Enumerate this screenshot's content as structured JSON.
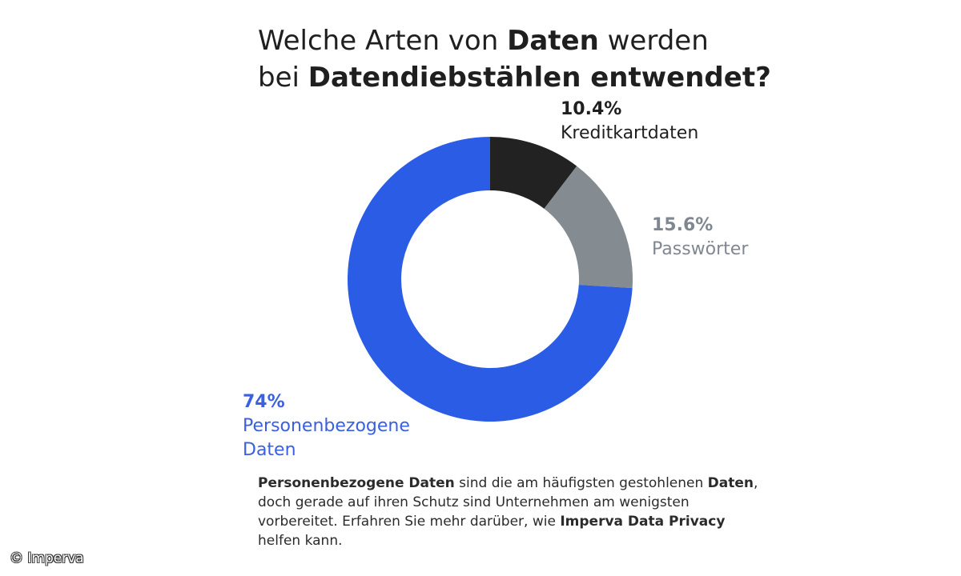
{
  "title": {
    "line1_regular": "Welche Arten von ",
    "line1_bold": "Daten",
    "line1_end": " werden",
    "line2_regular": "bei ",
    "line2_bold": "Datendiebstählen entwendet?"
  },
  "chart_data": {
    "type": "pie",
    "donut": true,
    "title": "Welche Arten von Daten werden bei Datendiebstählen entwendet?",
    "slices": [
      {
        "name": "Kreditkartdaten",
        "value": 10.4,
        "label": "10.4%",
        "color": "#222222"
      },
      {
        "name": "Passwörter",
        "value": 15.6,
        "label": "15.6%",
        "color": "#848c92"
      },
      {
        "name": "Personenbezogene Daten",
        "value": 74,
        "label": "74%",
        "color": "#2b5ce6"
      }
    ]
  },
  "labels": {
    "credit_pct": "10.4%",
    "credit_name": "Kreditkartdaten",
    "pass_pct": "15.6%",
    "pass_name": "Passwörter",
    "pers_pct": "74%",
    "pers_name_line1": "Personenbezogene",
    "pers_name_line2": "Daten"
  },
  "description": {
    "b1": "Personenbezogene Daten",
    "t1": " sind die am häufigsten gestohlenen ",
    "b2": "Daten",
    "t2": ", doch gerade auf ihren Schutz sind  Unternehmen am wenigsten vorbereitet. Erfahren Sie mehr darüber, wie ",
    "b3": "Imperva Data Privacy",
    "t3": " helfen kann."
  },
  "credit": "© Imperva"
}
